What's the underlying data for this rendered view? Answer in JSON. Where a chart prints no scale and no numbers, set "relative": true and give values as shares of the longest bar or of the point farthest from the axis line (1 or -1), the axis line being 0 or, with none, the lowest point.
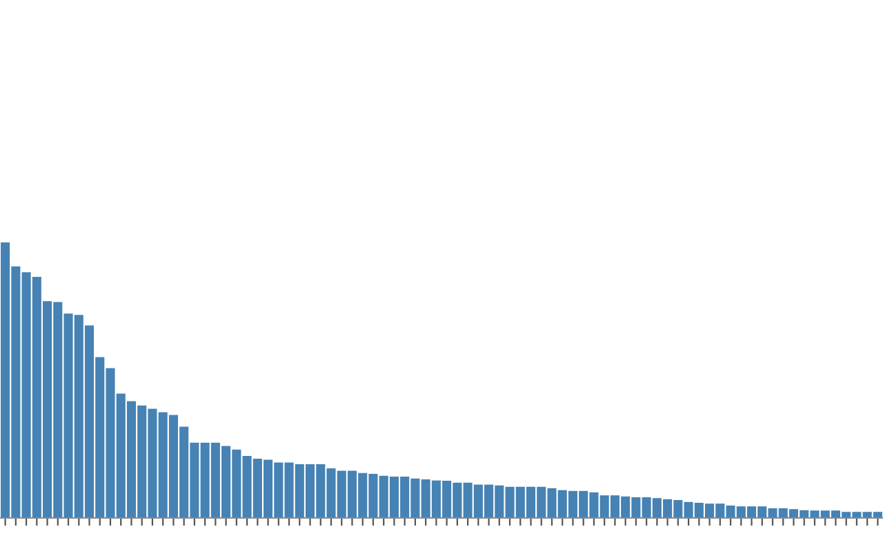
{
  "chart_data": {
    "type": "bar",
    "relative": true,
    "color": "#4682b4",
    "grid": false,
    "legend": false,
    "categories": [
      null,
      null,
      null,
      null,
      null,
      null,
      null,
      null,
      null,
      null,
      null,
      null,
      null,
      null,
      null,
      null,
      null,
      null,
      null,
      null,
      null,
      null,
      null,
      null,
      null,
      null,
      null,
      null,
      null,
      null,
      null,
      null,
      null,
      null,
      null,
      null,
      null,
      null,
      null,
      null,
      null,
      null,
      null,
      null,
      null,
      null,
      null,
      null,
      null,
      null,
      null,
      null,
      null,
      null,
      null,
      null,
      null,
      null,
      null,
      null,
      null,
      null,
      null,
      null,
      null,
      null,
      null,
      null,
      null,
      null,
      null,
      null,
      null,
      null,
      null,
      null,
      null,
      null,
      null,
      null,
      null,
      null,
      null,
      null
    ],
    "values": [
      1.0,
      0.913,
      0.892,
      0.875,
      0.787,
      0.784,
      0.742,
      0.737,
      0.699,
      0.584,
      0.544,
      0.451,
      0.424,
      0.408,
      0.396,
      0.384,
      0.374,
      0.331,
      0.273,
      0.273,
      0.273,
      0.261,
      0.248,
      0.225,
      0.215,
      0.211,
      0.201,
      0.201,
      0.195,
      0.195,
      0.195,
      0.18,
      0.171,
      0.171,
      0.163,
      0.16,
      0.153,
      0.15,
      0.15,
      0.143,
      0.14,
      0.136,
      0.135,
      0.128,
      0.128,
      0.121,
      0.121,
      0.118,
      0.113,
      0.113,
      0.113,
      0.113,
      0.108,
      0.101,
      0.098,
      0.098,
      0.093,
      0.082,
      0.082,
      0.078,
      0.075,
      0.075,
      0.072,
      0.068,
      0.065,
      0.058,
      0.055,
      0.052,
      0.052,
      0.045,
      0.042,
      0.042,
      0.042,
      0.035,
      0.035,
      0.032,
      0.028,
      0.027,
      0.027,
      0.027,
      0.022,
      0.022,
      0.022,
      0.022
    ]
  }
}
